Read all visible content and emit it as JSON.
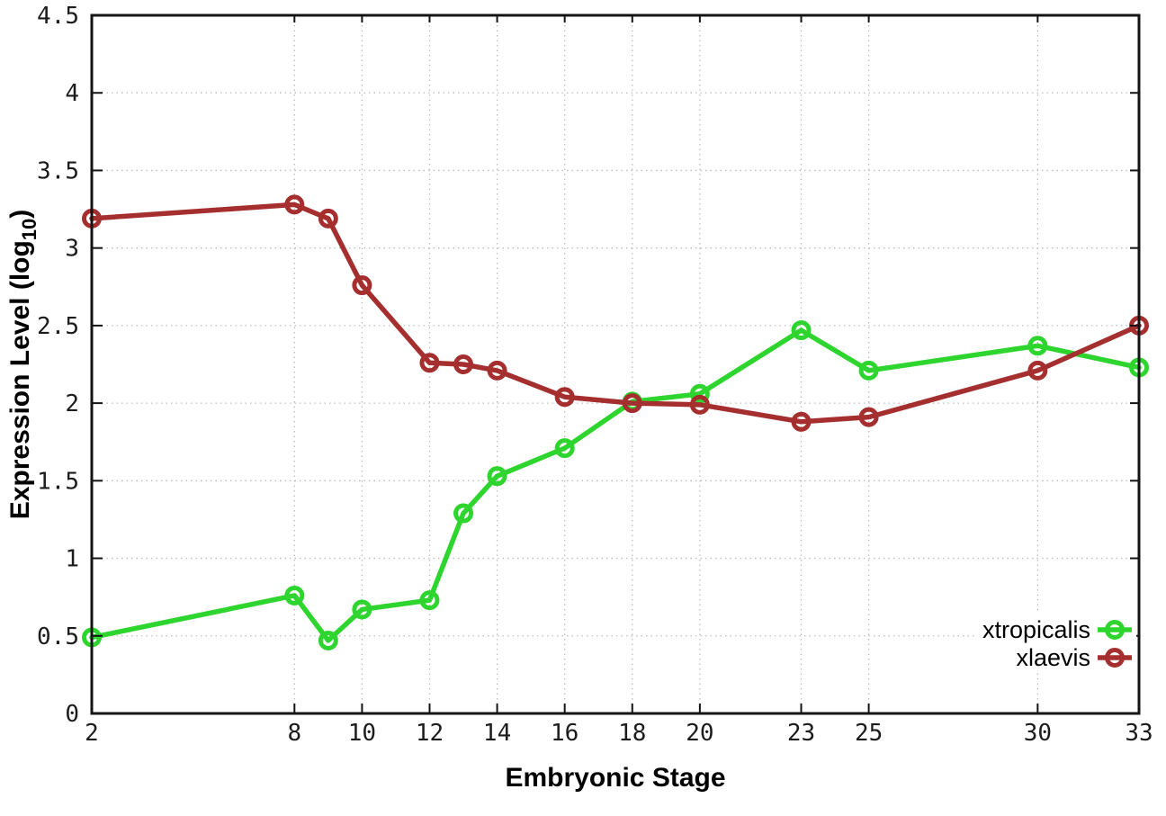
{
  "figure": {
    "background_color": "#ffffff",
    "axis_color": "#141414",
    "grid_color": "#bdbdbd",
    "tick_label_color": "#1c1c1c"
  },
  "chart_data": {
    "type": "line",
    "title": "",
    "xlabel": "Embryonic Stage",
    "ylabel": "Expression Level (log10)",
    "ylabel_parts": {
      "main": "Expression Level (log",
      "sub": "10",
      "close": ")"
    },
    "x": [
      2,
      8,
      9,
      10,
      12,
      13,
      14,
      16,
      18,
      20,
      23,
      25,
      30,
      33
    ],
    "xticks": [
      2,
      8,
      10,
      12,
      14,
      16,
      18,
      20,
      23,
      25,
      30,
      33
    ],
    "yticks": [
      0,
      0.5,
      1,
      1.5,
      2,
      2.5,
      3,
      3.5,
      4,
      4.5
    ],
    "xlim": [
      2,
      33
    ],
    "ylim": [
      0,
      4.5
    ],
    "grid": true,
    "grid_style": "dotted",
    "legend_position": "bottom-right-inside",
    "series": [
      {
        "name": "xtropicalis",
        "color": "#2ed52e",
        "marker": "open-circle",
        "values": [
          0.49,
          0.76,
          0.47,
          0.67,
          0.73,
          1.29,
          1.53,
          1.71,
          2.01,
          2.06,
          2.47,
          2.21,
          2.37,
          2.23
        ]
      },
      {
        "name": "xlaevis",
        "color": "#a52f2f",
        "marker": "open-circle",
        "values": [
          3.19,
          3.28,
          3.19,
          2.76,
          2.26,
          2.25,
          2.21,
          2.04,
          2.0,
          1.99,
          1.88,
          1.91,
          2.21,
          2.5
        ]
      }
    ]
  }
}
